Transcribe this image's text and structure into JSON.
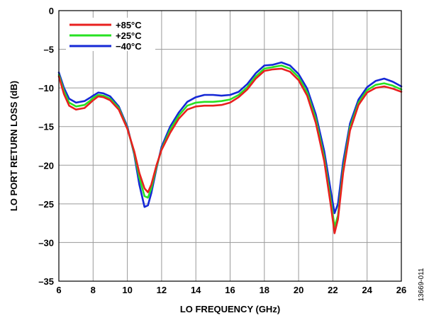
{
  "chart_data": {
    "type": "line",
    "title": "",
    "xlabel": "LO FREQUENCY (GHz)",
    "ylabel": "LO PORT RETURN LOSS (dB)",
    "xlim": [
      6,
      26
    ],
    "ylim": [
      -35,
      0
    ],
    "xticks": [
      6,
      8,
      10,
      12,
      14,
      16,
      18,
      20,
      22,
      24,
      26
    ],
    "yticks": [
      0,
      -5,
      -10,
      -15,
      -20,
      -25,
      -30,
      -35
    ],
    "xtick_labels": [
      "6",
      "8",
      "10",
      "12",
      "14",
      "16",
      "18",
      "20",
      "22",
      "24",
      "26"
    ],
    "ytick_labels": [
      "0",
      "–5",
      "–10",
      "–15",
      "–20",
      "–25",
      "–30",
      "–35"
    ],
    "grid": true,
    "legend_position": "top-left",
    "figure_id": "13669-011",
    "series": [
      {
        "name": "+85°C",
        "color": "#e8201f",
        "points": [
          [
            6.0,
            -8.5
          ],
          [
            6.3,
            -10.8
          ],
          [
            6.6,
            -12.3
          ],
          [
            7.0,
            -12.8
          ],
          [
            7.5,
            -12.6
          ],
          [
            7.8,
            -12.0
          ],
          [
            8.0,
            -11.6
          ],
          [
            8.3,
            -11.1
          ],
          [
            8.6,
            -11.2
          ],
          [
            9.0,
            -11.6
          ],
          [
            9.5,
            -12.8
          ],
          [
            10.0,
            -15.3
          ],
          [
            10.4,
            -18.2
          ],
          [
            10.7,
            -21.0
          ],
          [
            11.0,
            -23.0
          ],
          [
            11.2,
            -23.5
          ],
          [
            11.4,
            -22.5
          ],
          [
            11.7,
            -20.0
          ],
          [
            12.0,
            -18.0
          ],
          [
            12.5,
            -15.8
          ],
          [
            13.0,
            -14.0
          ],
          [
            13.5,
            -12.8
          ],
          [
            14.0,
            -12.4
          ],
          [
            14.5,
            -12.3
          ],
          [
            15.0,
            -12.3
          ],
          [
            15.5,
            -12.2
          ],
          [
            16.0,
            -11.9
          ],
          [
            16.5,
            -11.2
          ],
          [
            17.0,
            -10.2
          ],
          [
            17.5,
            -8.8
          ],
          [
            18.0,
            -7.8
          ],
          [
            18.5,
            -7.6
          ],
          [
            19.0,
            -7.5
          ],
          [
            19.5,
            -7.9
          ],
          [
            20.0,
            -9.0
          ],
          [
            20.5,
            -11.0
          ],
          [
            21.0,
            -14.5
          ],
          [
            21.5,
            -19.5
          ],
          [
            21.9,
            -25.5
          ],
          [
            22.1,
            -28.8
          ],
          [
            22.3,
            -27.0
          ],
          [
            22.6,
            -21.0
          ],
          [
            23.0,
            -15.5
          ],
          [
            23.5,
            -12.2
          ],
          [
            24.0,
            -10.6
          ],
          [
            24.5,
            -10.0
          ],
          [
            25.0,
            -9.8
          ],
          [
            25.5,
            -10.1
          ],
          [
            26.0,
            -10.5
          ]
        ]
      },
      {
        "name": "+25°C",
        "color": "#27e123",
        "points": [
          [
            6.0,
            -8.3
          ],
          [
            6.3,
            -10.4
          ],
          [
            6.6,
            -11.9
          ],
          [
            7.0,
            -12.4
          ],
          [
            7.5,
            -12.2
          ],
          [
            7.8,
            -11.7
          ],
          [
            8.0,
            -11.3
          ],
          [
            8.3,
            -10.9
          ],
          [
            8.6,
            -11.0
          ],
          [
            9.0,
            -11.4
          ],
          [
            9.5,
            -12.6
          ],
          [
            10.0,
            -15.2
          ],
          [
            10.4,
            -18.4
          ],
          [
            10.7,
            -21.6
          ],
          [
            11.0,
            -24.0
          ],
          [
            11.2,
            -24.2
          ],
          [
            11.4,
            -23.0
          ],
          [
            11.7,
            -20.2
          ],
          [
            12.0,
            -17.9
          ],
          [
            12.5,
            -15.4
          ],
          [
            13.0,
            -13.6
          ],
          [
            13.5,
            -12.3
          ],
          [
            14.0,
            -11.9
          ],
          [
            14.5,
            -11.8
          ],
          [
            15.0,
            -11.8
          ],
          [
            15.5,
            -11.7
          ],
          [
            16.0,
            -11.5
          ],
          [
            16.5,
            -10.9
          ],
          [
            17.0,
            -9.9
          ],
          [
            17.5,
            -8.5
          ],
          [
            18.0,
            -7.5
          ],
          [
            18.5,
            -7.3
          ],
          [
            19.0,
            -7.1
          ],
          [
            19.5,
            -7.5
          ],
          [
            20.0,
            -8.6
          ],
          [
            20.5,
            -10.6
          ],
          [
            21.0,
            -14.0
          ],
          [
            21.5,
            -19.0
          ],
          [
            21.9,
            -24.8
          ],
          [
            22.1,
            -28.0
          ],
          [
            22.3,
            -26.5
          ],
          [
            22.6,
            -20.5
          ],
          [
            23.0,
            -15.1
          ],
          [
            23.5,
            -11.9
          ],
          [
            24.0,
            -10.3
          ],
          [
            24.5,
            -9.6
          ],
          [
            25.0,
            -9.4
          ],
          [
            25.5,
            -9.7
          ],
          [
            26.0,
            -10.2
          ]
        ]
      },
      {
        "name": "−40°C",
        "color": "#1528d6",
        "points": [
          [
            6.0,
            -8.0
          ],
          [
            6.3,
            -10.0
          ],
          [
            6.6,
            -11.4
          ],
          [
            7.0,
            -11.9
          ],
          [
            7.5,
            -11.7
          ],
          [
            7.8,
            -11.3
          ],
          [
            8.0,
            -11.0
          ],
          [
            8.3,
            -10.6
          ],
          [
            8.6,
            -10.7
          ],
          [
            9.0,
            -11.1
          ],
          [
            9.5,
            -12.4
          ],
          [
            10.0,
            -15.0
          ],
          [
            10.4,
            -18.6
          ],
          [
            10.7,
            -22.5
          ],
          [
            11.0,
            -25.4
          ],
          [
            11.2,
            -25.2
          ],
          [
            11.4,
            -23.6
          ],
          [
            11.7,
            -20.4
          ],
          [
            12.0,
            -17.6
          ],
          [
            12.5,
            -15.0
          ],
          [
            13.0,
            -13.2
          ],
          [
            13.5,
            -11.8
          ],
          [
            14.0,
            -11.2
          ],
          [
            14.5,
            -10.9
          ],
          [
            15.0,
            -10.9
          ],
          [
            15.5,
            -11.0
          ],
          [
            16.0,
            -10.9
          ],
          [
            16.5,
            -10.5
          ],
          [
            17.0,
            -9.5
          ],
          [
            17.5,
            -8.1
          ],
          [
            18.0,
            -7.1
          ],
          [
            18.5,
            -7.0
          ],
          [
            19.0,
            -6.7
          ],
          [
            19.5,
            -7.1
          ],
          [
            20.0,
            -8.2
          ],
          [
            20.5,
            -10.1
          ],
          [
            21.0,
            -13.4
          ],
          [
            21.5,
            -18.2
          ],
          [
            21.9,
            -23.6
          ],
          [
            22.1,
            -26.2
          ],
          [
            22.3,
            -25.0
          ],
          [
            22.6,
            -19.6
          ],
          [
            23.0,
            -14.6
          ],
          [
            23.5,
            -11.5
          ],
          [
            24.0,
            -9.9
          ],
          [
            24.5,
            -9.1
          ],
          [
            25.0,
            -8.8
          ],
          [
            25.5,
            -9.2
          ],
          [
            26.0,
            -9.8
          ]
        ]
      }
    ]
  }
}
